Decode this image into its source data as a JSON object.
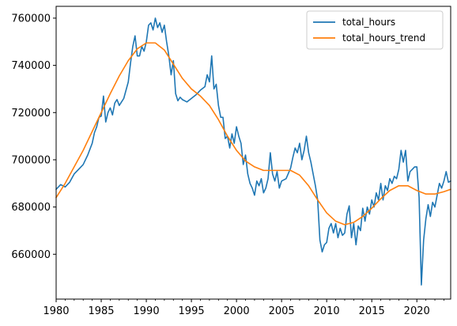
{
  "chart_data": {
    "type": "line",
    "title": "",
    "xlabel": "",
    "ylabel": "",
    "xlim": [
      1980,
      2023.75
    ],
    "ylim": [
      641000,
      765000
    ],
    "xticks": [
      1980,
      1985,
      1990,
      1995,
      2000,
      2005,
      2010,
      2015,
      2020
    ],
    "xtick_labels": [
      "1980",
      "1985",
      "1990",
      "1995",
      "2000",
      "2005",
      "2010",
      "2015",
      "2020"
    ],
    "yticks": [
      660000,
      680000,
      700000,
      720000,
      740000,
      760000
    ],
    "ytick_labels": [
      "660000",
      "680000",
      "700000",
      "720000",
      "740000",
      "760000"
    ],
    "grid": false,
    "legend_position": "top-right",
    "series": [
      {
        "name": "total_hours",
        "color": "#1f77b4",
        "points": [
          [
            1980.0,
            687500
          ],
          [
            1980.5,
            689500
          ],
          [
            1981.0,
            688500
          ],
          [
            1981.5,
            690500
          ],
          [
            1982.0,
            694000
          ],
          [
            1982.5,
            696000
          ],
          [
            1983.0,
            698000
          ],
          [
            1983.5,
            702000
          ],
          [
            1984.0,
            707000
          ],
          [
            1984.25,
            711500
          ],
          [
            1984.5,
            714000
          ],
          [
            1984.75,
            718000
          ],
          [
            1985.0,
            718500
          ],
          [
            1985.25,
            727000
          ],
          [
            1985.5,
            716000
          ],
          [
            1985.75,
            720000
          ],
          [
            1986.0,
            722000
          ],
          [
            1986.25,
            719000
          ],
          [
            1986.5,
            724000
          ],
          [
            1986.75,
            725500
          ],
          [
            1987.0,
            723000
          ],
          [
            1987.5,
            726000
          ],
          [
            1988.0,
            733000
          ],
          [
            1988.25,
            741000
          ],
          [
            1988.5,
            748000
          ],
          [
            1988.75,
            752500
          ],
          [
            1989.0,
            744000
          ],
          [
            1989.25,
            744000
          ],
          [
            1989.5,
            748000
          ],
          [
            1989.75,
            746000
          ],
          [
            1990.0,
            750000
          ],
          [
            1990.25,
            757000
          ],
          [
            1990.5,
            758000
          ],
          [
            1990.75,
            755000
          ],
          [
            1991.0,
            760000
          ],
          [
            1991.25,
            756000
          ],
          [
            1991.5,
            758000
          ],
          [
            1991.75,
            754000
          ],
          [
            1992.0,
            757000
          ],
          [
            1992.25,
            750000
          ],
          [
            1992.5,
            744000
          ],
          [
            1992.75,
            736000
          ],
          [
            1993.0,
            742000
          ],
          [
            1993.25,
            728000
          ],
          [
            1993.5,
            725000
          ],
          [
            1993.75,
            726500
          ],
          [
            1994.0,
            725500
          ],
          [
            1994.5,
            724500
          ],
          [
            1995.0,
            726000
          ],
          [
            1995.5,
            727500
          ],
          [
            1996.0,
            729500
          ],
          [
            1996.5,
            731000
          ],
          [
            1996.75,
            736000
          ],
          [
            1997.0,
            733000
          ],
          [
            1997.25,
            744000
          ],
          [
            1997.5,
            730000
          ],
          [
            1997.75,
            732000
          ],
          [
            1998.0,
            723000
          ],
          [
            1998.25,
            718000
          ],
          [
            1998.5,
            718000
          ],
          [
            1998.75,
            709000
          ],
          [
            1999.0,
            710000
          ],
          [
            1999.25,
            705000
          ],
          [
            1999.5,
            711000
          ],
          [
            1999.75,
            707000
          ],
          [
            2000.0,
            714000
          ],
          [
            2000.25,
            710000
          ],
          [
            2000.5,
            707000
          ],
          [
            2000.75,
            698000
          ],
          [
            2001.0,
            702000
          ],
          [
            2001.25,
            694000
          ],
          [
            2001.5,
            690000
          ],
          [
            2001.75,
            688000
          ],
          [
            2002.0,
            685000
          ],
          [
            2002.25,
            691000
          ],
          [
            2002.5,
            689000
          ],
          [
            2002.75,
            692000
          ],
          [
            2003.0,
            686000
          ],
          [
            2003.25,
            688000
          ],
          [
            2003.5,
            692000
          ],
          [
            2003.75,
            703000
          ],
          [
            2004.0,
            694000
          ],
          [
            2004.25,
            691000
          ],
          [
            2004.5,
            695000
          ],
          [
            2004.75,
            688000
          ],
          [
            2005.0,
            691000
          ],
          [
            2005.5,
            692000
          ],
          [
            2006.0,
            696500
          ],
          [
            2006.25,
            701000
          ],
          [
            2006.5,
            705000
          ],
          [
            2006.75,
            703000
          ],
          [
            2007.0,
            707000
          ],
          [
            2007.25,
            700000
          ],
          [
            2007.5,
            704000
          ],
          [
            2007.75,
            710000
          ],
          [
            2008.0,
            703000
          ],
          [
            2008.25,
            699000
          ],
          [
            2008.5,
            694000
          ],
          [
            2008.75,
            689000
          ],
          [
            2009.0,
            683000
          ],
          [
            2009.25,
            666000
          ],
          [
            2009.5,
            661000
          ],
          [
            2009.75,
            664000
          ],
          [
            2010.0,
            665000
          ],
          [
            2010.25,
            671000
          ],
          [
            2010.5,
            673000
          ],
          [
            2010.75,
            669000
          ],
          [
            2011.0,
            673000
          ],
          [
            2011.25,
            667000
          ],
          [
            2011.5,
            671000
          ],
          [
            2011.75,
            668000
          ],
          [
            2012.0,
            669000
          ],
          [
            2012.25,
            677000
          ],
          [
            2012.5,
            680500
          ],
          [
            2012.75,
            667000
          ],
          [
            2013.0,
            673000
          ],
          [
            2013.25,
            664000
          ],
          [
            2013.5,
            672000
          ],
          [
            2013.75,
            670000
          ],
          [
            2014.0,
            679500
          ],
          [
            2014.25,
            674000
          ],
          [
            2014.5,
            680000
          ],
          [
            2014.75,
            677000
          ],
          [
            2015.0,
            683000
          ],
          [
            2015.25,
            680000
          ],
          [
            2015.5,
            686000
          ],
          [
            2015.75,
            683000
          ],
          [
            2016.0,
            690000
          ],
          [
            2016.25,
            683000
          ],
          [
            2016.5,
            689000
          ],
          [
            2016.75,
            687000
          ],
          [
            2017.0,
            692000
          ],
          [
            2017.25,
            690000
          ],
          [
            2017.5,
            693000
          ],
          [
            2017.75,
            692000
          ],
          [
            2018.0,
            696000
          ],
          [
            2018.25,
            704000
          ],
          [
            2018.5,
            699000
          ],
          [
            2018.75,
            704000
          ],
          [
            2019.0,
            691000
          ],
          [
            2019.25,
            695000
          ],
          [
            2019.5,
            696000
          ],
          [
            2019.75,
            697000
          ],
          [
            2020.0,
            697000
          ],
          [
            2020.25,
            684000
          ],
          [
            2020.5,
            647000
          ],
          [
            2020.75,
            666000
          ],
          [
            2021.0,
            675000
          ],
          [
            2021.25,
            681000
          ],
          [
            2021.5,
            676000
          ],
          [
            2021.75,
            682000
          ],
          [
            2022.0,
            680000
          ],
          [
            2022.25,
            685000
          ],
          [
            2022.5,
            690000
          ],
          [
            2022.75,
            688000
          ],
          [
            2023.0,
            691000
          ],
          [
            2023.25,
            695000
          ],
          [
            2023.5,
            690500
          ],
          [
            2023.75,
            691000
          ]
        ]
      },
      {
        "name": "total_hours_trend",
        "color": "#ff7f0e",
        "points": [
          [
            1980.0,
            684000
          ],
          [
            1981.0,
            690000
          ],
          [
            1982.0,
            697000
          ],
          [
            1983.0,
            704000
          ],
          [
            1984.0,
            712000
          ],
          [
            1985.0,
            720000
          ],
          [
            1986.0,
            728000
          ],
          [
            1987.0,
            735500
          ],
          [
            1988.0,
            742000
          ],
          [
            1989.0,
            747000
          ],
          [
            1990.0,
            749500
          ],
          [
            1991.0,
            749500
          ],
          [
            1992.0,
            746500
          ],
          [
            1993.0,
            740500
          ],
          [
            1994.0,
            734500
          ],
          [
            1995.0,
            730000
          ],
          [
            1996.0,
            727000
          ],
          [
            1997.0,
            723000
          ],
          [
            1998.0,
            717000
          ],
          [
            1999.0,
            710000
          ],
          [
            2000.0,
            704000
          ],
          [
            2001.0,
            699500
          ],
          [
            2002.0,
            697000
          ],
          [
            2003.0,
            695500
          ],
          [
            2004.0,
            695500
          ],
          [
            2005.0,
            695500
          ],
          [
            2006.0,
            695500
          ],
          [
            2007.0,
            693500
          ],
          [
            2008.0,
            689000
          ],
          [
            2009.0,
            683000
          ],
          [
            2010.0,
            677500
          ],
          [
            2011.0,
            674000
          ],
          [
            2012.0,
            672500
          ],
          [
            2013.0,
            673500
          ],
          [
            2014.0,
            676000
          ],
          [
            2015.0,
            679500
          ],
          [
            2016.0,
            683500
          ],
          [
            2017.0,
            687000
          ],
          [
            2018.0,
            689000
          ],
          [
            2019.0,
            689000
          ],
          [
            2020.0,
            687000
          ],
          [
            2021.0,
            685500
          ],
          [
            2022.0,
            685500
          ],
          [
            2023.0,
            686500
          ],
          [
            2023.75,
            687500
          ]
        ]
      }
    ]
  }
}
